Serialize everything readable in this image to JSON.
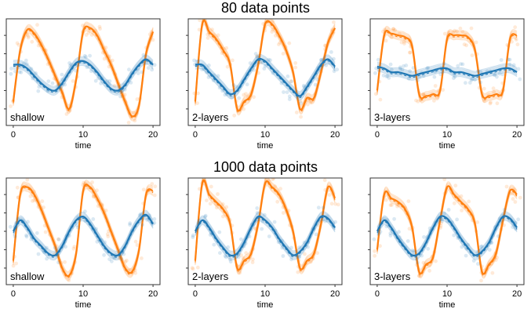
{
  "rows": [
    {
      "title": "80 data points"
    },
    {
      "title": "1000 data points"
    }
  ],
  "colors": {
    "series_1": "#1f77b4",
    "series_2": "#ff7f0e"
  },
  "chart_data": [
    {
      "type": "line",
      "panel_label": "shallow",
      "xlabel": "time",
      "xticks": [
        "0",
        "10",
        "20"
      ],
      "xlim": [
        -1,
        21
      ],
      "ylim": [
        -1.45,
        1.45
      ],
      "series": [
        {
          "color": "#ff7f0e",
          "x": [
            0,
            1,
            2,
            3,
            4,
            5,
            6,
            7,
            8,
            9,
            10,
            11,
            12,
            13,
            14,
            15,
            16,
            17,
            18,
            19,
            20
          ],
          "values": [
            -0.8,
            0.6,
            1.15,
            1.05,
            0.75,
            0.35,
            -0.1,
            -0.55,
            -1.0,
            -0.2,
            1.1,
            1.2,
            1.0,
            0.6,
            0.2,
            -0.3,
            -0.8,
            -1.2,
            -0.9,
            0.5,
            1.1
          ]
        },
        {
          "color": "#1f77b4",
          "x": [
            0,
            1,
            2,
            3,
            4,
            5,
            6,
            7,
            8,
            9,
            10,
            11,
            12,
            13,
            14,
            15,
            16,
            17,
            18,
            19,
            20
          ],
          "values": [
            0.2,
            0.2,
            0.1,
            -0.1,
            -0.3,
            -0.45,
            -0.5,
            -0.3,
            0.0,
            0.25,
            0.3,
            0.2,
            0.0,
            -0.25,
            -0.45,
            -0.5,
            -0.35,
            -0.05,
            0.2,
            0.35,
            0.2
          ]
        }
      ]
    },
    {
      "type": "line",
      "panel_label": "2-layers",
      "xlabel": "time",
      "xticks": [
        "0",
        "10",
        "20"
      ],
      "xlim": [
        -1,
        21
      ],
      "ylim": [
        -1.45,
        1.45
      ],
      "series": [
        {
          "color": "#ff7f0e",
          "x": [
            0,
            1,
            2,
            3,
            4,
            5,
            6,
            7,
            8,
            9,
            10,
            11,
            12,
            13,
            14,
            15,
            16,
            17,
            18,
            19,
            20
          ],
          "values": [
            -0.8,
            1.3,
            1.1,
            0.9,
            0.6,
            0.2,
            -1.0,
            -0.8,
            -0.6,
            0.2,
            1.3,
            1.3,
            1.0,
            0.6,
            0.0,
            -1.0,
            -0.7,
            -0.7,
            0.0,
            0.8,
            1.2
          ]
        },
        {
          "color": "#1f77b4",
          "x": [
            0,
            1,
            2,
            3,
            4,
            5,
            6,
            7,
            8,
            9,
            10,
            11,
            12,
            13,
            14,
            15,
            16,
            17,
            18,
            19,
            20
          ],
          "values": [
            0.2,
            0.2,
            0.0,
            -0.2,
            -0.4,
            -0.6,
            -0.5,
            -0.2,
            0.1,
            0.35,
            0.3,
            0.1,
            -0.1,
            -0.3,
            -0.5,
            -0.65,
            -0.4,
            -0.1,
            0.2,
            0.35,
            0.15
          ]
        }
      ]
    },
    {
      "type": "line",
      "panel_label": "3-layers",
      "xlabel": "time",
      "xticks": [
        "0",
        "10",
        "20"
      ],
      "xlim": [
        -1,
        21
      ],
      "ylim": [
        -1.45,
        1.45
      ],
      "series": [
        {
          "color": "#ff7f0e",
          "x": [
            0,
            1,
            2,
            3,
            4,
            5,
            6,
            7,
            8,
            9,
            10,
            11,
            12,
            13,
            14,
            15,
            16,
            17,
            18,
            19,
            20
          ],
          "values": [
            -0.5,
            1.0,
            1.05,
            1.0,
            0.95,
            0.7,
            -0.6,
            -0.65,
            -0.6,
            -0.5,
            0.9,
            1.0,
            1.0,
            0.95,
            0.6,
            -0.6,
            -0.65,
            -0.6,
            -0.5,
            0.9,
            1.0
          ]
        },
        {
          "color": "#1f77b4",
          "x": [
            0,
            1,
            2,
            3,
            4,
            5,
            6,
            7,
            8,
            9,
            10,
            11,
            12,
            13,
            14,
            15,
            16,
            17,
            18,
            19,
            20
          ],
          "values": [
            0.15,
            0.1,
            0.0,
            0.0,
            -0.05,
            -0.1,
            -0.05,
            0.0,
            0.05,
            0.1,
            0.1,
            0.0,
            0.0,
            -0.05,
            -0.1,
            -0.05,
            0.0,
            0.05,
            0.1,
            0.1,
            0.0
          ]
        }
      ]
    },
    {
      "type": "line",
      "panel_label": "shallow",
      "xlabel": "time",
      "xticks": [
        "0",
        "10",
        "20"
      ],
      "xlim": [
        -1,
        21
      ],
      "ylim": [
        -1.45,
        1.45
      ],
      "series": [
        {
          "color": "#ff7f0e",
          "x": [
            0,
            1,
            2,
            3,
            4,
            5,
            6,
            7,
            8,
            9,
            10,
            11,
            12,
            13,
            14,
            15,
            16,
            17,
            18,
            19,
            20
          ],
          "values": [
            -0.8,
            1.0,
            1.2,
            1.0,
            0.6,
            0.1,
            -0.4,
            -1.0,
            -1.2,
            -0.6,
            1.1,
            1.2,
            0.9,
            0.5,
            0.0,
            -0.5,
            -1.0,
            -1.1,
            -0.5,
            1.0,
            1.1
          ]
        },
        {
          "color": "#1f77b4",
          "x": [
            0,
            1,
            2,
            3,
            4,
            5,
            6,
            7,
            8,
            9,
            10,
            11,
            12,
            13,
            14,
            15,
            16,
            17,
            18,
            19,
            20
          ],
          "values": [
            0.0,
            0.3,
            0.1,
            -0.2,
            -0.4,
            -0.6,
            -0.65,
            -0.4,
            0.0,
            0.3,
            0.4,
            0.2,
            -0.1,
            -0.4,
            -0.6,
            -0.65,
            -0.4,
            0.0,
            0.3,
            0.45,
            0.2
          ]
        }
      ]
    },
    {
      "type": "line",
      "panel_label": "2-layers",
      "xlabel": "time",
      "xticks": [
        "0",
        "10",
        "20"
      ],
      "xlim": [
        -1,
        21
      ],
      "ylim": [
        -1.45,
        1.45
      ],
      "series": [
        {
          "color": "#ff7f0e",
          "x": [
            0,
            1,
            2,
            3,
            4,
            5,
            6,
            7,
            8,
            9,
            10,
            11,
            12,
            13,
            14,
            15,
            16,
            17,
            18,
            19,
            20
          ],
          "values": [
            -0.8,
            1.3,
            1.0,
            0.8,
            0.6,
            0.2,
            -1.0,
            -0.8,
            -0.6,
            0.2,
            1.3,
            1.2,
            1.0,
            0.6,
            0.0,
            -1.0,
            -0.8,
            -0.6,
            0.2,
            1.2,
            0.9
          ]
        },
        {
          "color": "#1f77b4",
          "x": [
            0,
            1,
            2,
            3,
            4,
            5,
            6,
            7,
            8,
            9,
            10,
            11,
            12,
            13,
            14,
            15,
            16,
            17,
            18,
            19,
            20
          ],
          "values": [
            0.0,
            0.3,
            0.1,
            -0.2,
            -0.45,
            -0.65,
            -0.6,
            -0.3,
            0.1,
            0.4,
            0.3,
            0.1,
            -0.2,
            -0.45,
            -0.65,
            -0.55,
            -0.3,
            0.1,
            0.4,
            0.35,
            0.1
          ]
        }
      ]
    },
    {
      "type": "line",
      "panel_label": "3-layers",
      "xlabel": "time",
      "xticks": [
        "0",
        "10",
        "20"
      ],
      "xlim": [
        -1,
        21
      ],
      "ylim": [
        -1.45,
        1.45
      ],
      "series": [
        {
          "color": "#ff7f0e",
          "x": [
            0,
            1,
            2,
            3,
            4,
            5,
            6,
            7,
            8,
            9,
            10,
            11,
            12,
            13,
            14,
            15,
            16,
            17,
            18,
            19,
            20
          ],
          "values": [
            -0.5,
            1.0,
            0.9,
            0.8,
            0.6,
            0.1,
            -1.1,
            -0.9,
            -0.7,
            0.3,
            1.2,
            1.0,
            0.8,
            0.6,
            0.2,
            -1.1,
            -0.9,
            -0.6,
            0.3,
            1.1,
            1.0
          ]
        },
        {
          "color": "#1f77b4",
          "x": [
            0,
            1,
            2,
            3,
            4,
            5,
            6,
            7,
            8,
            9,
            10,
            11,
            12,
            13,
            14,
            15,
            16,
            17,
            18,
            19,
            20
          ],
          "values": [
            0.0,
            0.3,
            0.1,
            -0.2,
            -0.45,
            -0.65,
            -0.6,
            -0.3,
            0.1,
            0.4,
            0.35,
            0.1,
            -0.2,
            -0.45,
            -0.65,
            -0.55,
            -0.3,
            0.1,
            0.4,
            0.35,
            0.1
          ]
        }
      ]
    }
  ]
}
